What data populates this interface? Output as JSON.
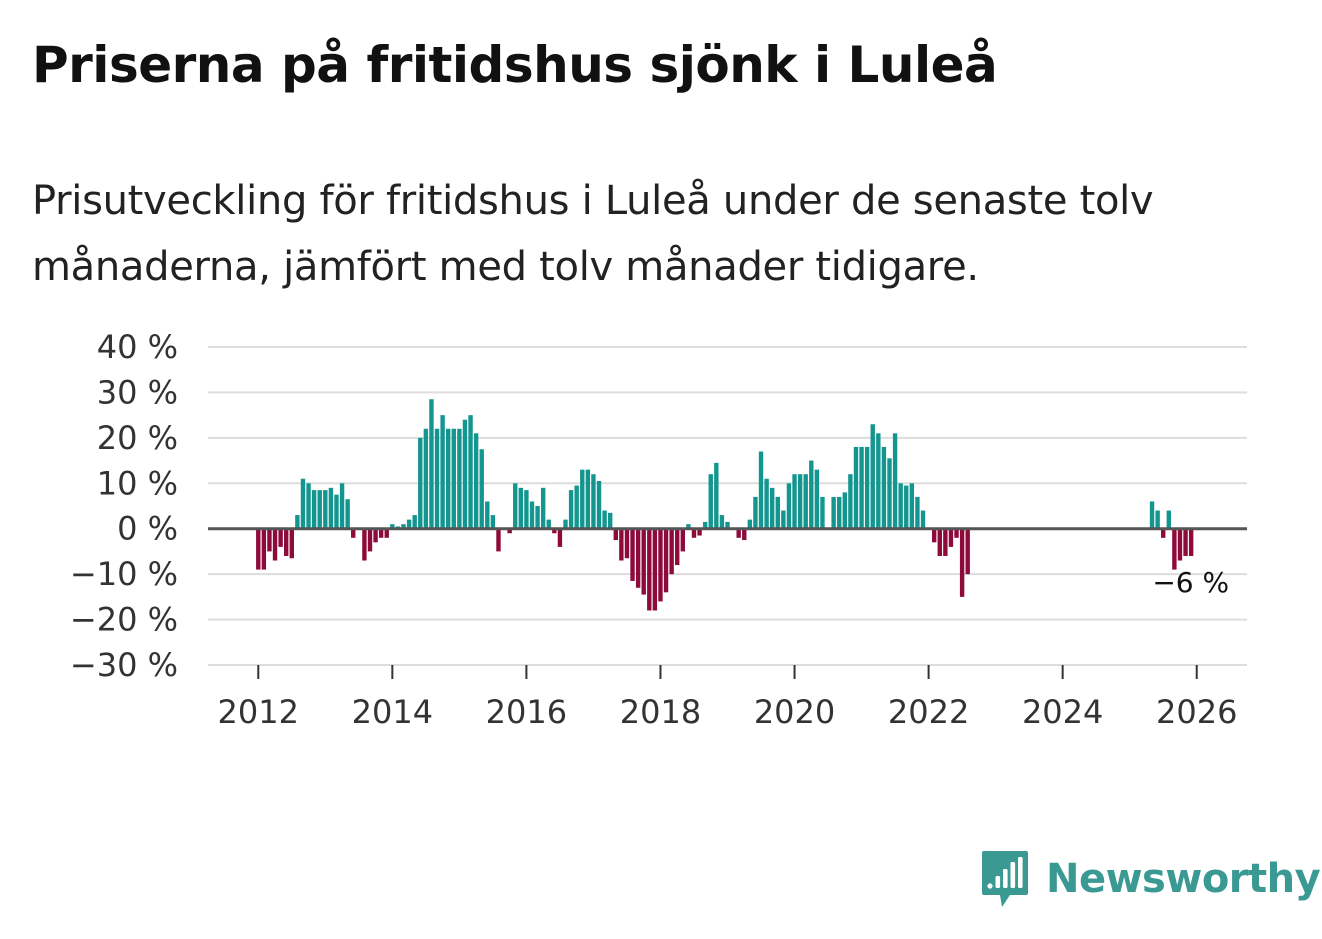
{
  "title": "Priserna på fritidshus sjönk i Luleå",
  "subtitle": "Prisutveckling för fritidshus i Luleå under de senaste tolv månaderna, jämfört med tolv månader tidigare.",
  "brand": {
    "name": "Newsworthy",
    "icon": "newsworthy-logo-icon"
  },
  "colors": {
    "positive": "#13968f",
    "negative": "#8e0a3a",
    "grid": "#dddddd",
    "zero": "#555555",
    "brand": "#3a9a93"
  },
  "chart_data": {
    "type": "bar",
    "title": "Priserna på fritidshus sjönk i Luleå",
    "xlabel": "",
    "ylabel": "",
    "ylim": [
      -30,
      40
    ],
    "xlim": [
      2011.25,
      2026.75
    ],
    "yticks": [
      40,
      30,
      20,
      10,
      0,
      -10,
      -20,
      -30
    ],
    "ytick_labels": [
      "40 %",
      "30 %",
      "20 %",
      "10 %",
      "0 %",
      "−10 %",
      "−20 %",
      "−30 %"
    ],
    "xticks": [
      2012,
      2014,
      2016,
      2018,
      2020,
      2022,
      2024,
      2026
    ],
    "xtick_labels": [
      "2012",
      "2014",
      "2016",
      "2018",
      "2020",
      "2022",
      "2024",
      "2026"
    ],
    "end_label": "−6 %",
    "series": [
      {
        "name": "Prisutveckling",
        "start": 2012.0,
        "step": 0.0833333,
        "values": [
          -9,
          -9,
          -5,
          -7,
          -4,
          -6,
          -6.5,
          3,
          11,
          10,
          8.5,
          8.5,
          8.5,
          9,
          7.5,
          10,
          6.5,
          -2,
          0,
          -7,
          -5,
          -3,
          -2,
          -2,
          1,
          0.5,
          1,
          2,
          3,
          20,
          22,
          28.5,
          22,
          25,
          22,
          22,
          22,
          24,
          25,
          21,
          17.5,
          6,
          3,
          -5,
          0,
          -1,
          10,
          9,
          8.5,
          6,
          5,
          9,
          2,
          -1,
          -4,
          2,
          8.5,
          9.5,
          13,
          13,
          12,
          10.5,
          4,
          3.5,
          -2.5,
          -7,
          -6.5,
          -11.5,
          -13,
          -14.5,
          -18,
          -18,
          -16,
          -14,
          -10,
          -8,
          -5,
          1,
          -2,
          -1.5,
          1.5,
          12,
          14.5,
          3,
          1.5,
          0,
          -2,
          -2.5,
          2,
          7,
          17,
          11,
          9,
          7,
          4,
          10,
          12,
          12,
          12,
          15,
          13,
          7,
          0,
          7,
          7,
          8,
          12,
          18,
          18,
          18,
          23,
          21,
          18,
          15.5,
          21,
          10,
          9.5,
          10,
          7,
          4,
          0,
          -3,
          -6,
          -6,
          -4,
          -2,
          -15,
          -10,
          null,
          null,
          null,
          null,
          null,
          null,
          null,
          null,
          null,
          null,
          null,
          null,
          null,
          null,
          null,
          null,
          null,
          null,
          null,
          null,
          null,
          null,
          null,
          null,
          null,
          null,
          null,
          null,
          null,
          null,
          null,
          null,
          6,
          4,
          -2,
          4,
          -9,
          -7,
          -6,
          -6
        ]
      }
    ]
  }
}
